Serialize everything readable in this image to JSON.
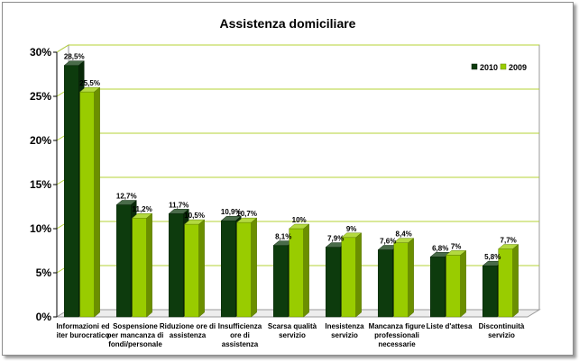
{
  "chart_data": {
    "type": "bar",
    "title": "Assistenza domiciliare",
    "categories": [
      [
        "Informazioni ed",
        "iter burocratico"
      ],
      [
        "Sospensione",
        "per mancanza di",
        "fondi/personale"
      ],
      [
        "Riduzione ore di",
        "assistenza"
      ],
      [
        "Insufficienza",
        "ore di",
        "assistenza"
      ],
      [
        "Scarsa qualità",
        "servizio"
      ],
      [
        "Inesistenza",
        "servizio"
      ],
      [
        "Mancanza figure",
        "professionali",
        "necessarie"
      ],
      [
        "Liste d'attesa"
      ],
      [
        "Discontinuità",
        "servizio"
      ]
    ],
    "series": [
      {
        "name": "2010",
        "color": "#0d3b0d",
        "values": [
          28.5,
          12.7,
          11.7,
          10.9,
          8.1,
          7.9,
          7.6,
          6.8,
          5.8
        ],
        "labels": [
          "28,5%",
          "12,7%",
          "11,7%",
          "10,9%",
          "8,1%",
          "7,9%",
          "7,6%",
          "6,8%",
          "5,8%"
        ]
      },
      {
        "name": "2009",
        "color": "#99cc00",
        "values": [
          25.5,
          11.2,
          10.5,
          10.7,
          10,
          9,
          8.4,
          7,
          7.7
        ],
        "labels": [
          "25,5%",
          "11,2%",
          "10,5%",
          "10,7%",
          "10%",
          "9%",
          "8,4%",
          "7%",
          "7,7%"
        ]
      }
    ],
    "ylim": [
      0,
      30
    ],
    "yticks": [
      0,
      5,
      10,
      15,
      20,
      25,
      30
    ],
    "ytick_labels": [
      "0%",
      "5%",
      "10%",
      "15%",
      "20%",
      "25%",
      "30%"
    ],
    "xlabel": "",
    "ylabel": "",
    "grid": true,
    "legend_position": "top-right",
    "gridline_color": "#b5d334"
  }
}
